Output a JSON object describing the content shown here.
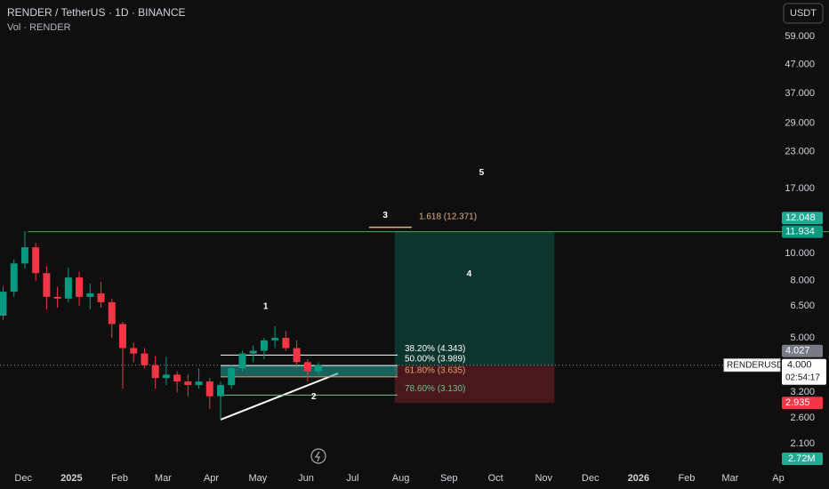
{
  "header": {
    "symbol": "RENDER / TetherUS · 1D · BINANCE",
    "volume": "Vol · RENDER",
    "currency": "USDT"
  },
  "chart_data": {
    "type": "candlestick",
    "x": [
      "2024-11-18",
      "2024-11-25",
      "2024-12-02",
      "2024-12-09",
      "2024-12-16",
      "2024-12-23",
      "2024-12-30",
      "2025-01-06",
      "2025-01-13",
      "2025-01-20",
      "2025-01-27",
      "2025-02-03",
      "2025-02-10",
      "2025-02-17",
      "2025-02-24",
      "2025-03-03",
      "2025-03-10",
      "2025-03-17",
      "2025-03-24",
      "2025-03-31",
      "2025-04-07",
      "2025-04-14",
      "2025-04-21",
      "2025-04-28",
      "2025-05-05",
      "2025-05-12",
      "2025-05-19",
      "2025-05-26",
      "2025-06-02",
      "2025-06-09"
    ],
    "open": [
      6.0,
      7.3,
      9.2,
      10.5,
      8.5,
      7.0,
      6.9,
      8.2,
      7.0,
      7.2,
      6.7,
      5.6,
      4.6,
      4.4,
      4.0,
      3.6,
      3.7,
      3.5,
      3.4,
      3.5,
      3.1,
      3.4,
      3.9,
      4.4,
      4.5,
      4.9,
      5.0,
      4.6,
      4.1,
      3.8
    ],
    "high": [
      7.6,
      9.5,
      12.0,
      10.9,
      9.0,
      7.6,
      8.9,
      8.6,
      7.8,
      7.9,
      6.9,
      5.7,
      4.8,
      4.6,
      4.3,
      4.3,
      3.8,
      3.7,
      3.9,
      3.6,
      3.5,
      4.0,
      4.5,
      4.7,
      5.0,
      5.5,
      5.3,
      4.9,
      4.2,
      4.1
    ],
    "low": [
      5.8,
      7.0,
      8.8,
      8.0,
      6.3,
      6.4,
      6.7,
      6.5,
      6.3,
      6.4,
      5.0,
      3.3,
      4.1,
      3.9,
      3.3,
      3.4,
      3.2,
      3.1,
      3.3,
      2.8,
      2.55,
      3.3,
      3.8,
      4.1,
      4.2,
      4.6,
      4.5,
      3.9,
      3.5,
      3.7
    ],
    "close": [
      7.3,
      9.2,
      10.5,
      8.5,
      7.0,
      6.9,
      8.2,
      7.0,
      7.2,
      6.7,
      5.6,
      4.6,
      4.4,
      4.0,
      3.6,
      3.7,
      3.5,
      3.4,
      3.5,
      3.1,
      3.4,
      3.9,
      4.4,
      4.5,
      4.9,
      5.0,
      4.6,
      4.1,
      3.8,
      4.0
    ],
    "up_color": "#089981",
    "down_color": "#f23645",
    "log_scale": true,
    "ylim": [
      1.74,
      79.6
    ],
    "yticks": [
      {
        "value": 59,
        "label": "59.000"
      },
      {
        "value": 47,
        "label": "47.000"
      },
      {
        "value": 37,
        "label": "37.000"
      },
      {
        "value": 29,
        "label": "29.000"
      },
      {
        "value": 23,
        "label": "23.000"
      },
      {
        "value": 17,
        "label": "17.000"
      },
      {
        "value": 10,
        "label": "10.000"
      },
      {
        "value": 8,
        "label": "8.000"
      },
      {
        "value": 6.5,
        "label": "6.500"
      },
      {
        "value": 5,
        "label": "5.000"
      },
      {
        "value": 3.2,
        "label": "3.200"
      },
      {
        "value": 2.6,
        "label": "2.600"
      },
      {
        "value": 2.1,
        "label": "2.100"
      }
    ],
    "xlim": [
      "2024-11-16",
      "2026-04-01"
    ],
    "xticks": [
      {
        "value": "2024-12-01",
        "label": "Dec"
      },
      {
        "value": "2025-01-01",
        "label": "2025"
      },
      {
        "value": "2025-02-01",
        "label": "Feb"
      },
      {
        "value": "2025-03-01",
        "label": "Mar"
      },
      {
        "value": "2025-04-01",
        "label": "Apr"
      },
      {
        "value": "2025-05-01",
        "label": "May"
      },
      {
        "value": "2025-06-01",
        "label": "Jun"
      },
      {
        "value": "2025-07-01",
        "label": "Jul"
      },
      {
        "value": "2025-08-01",
        "label": "Aug"
      },
      {
        "value": "2025-09-01",
        "label": "Sep"
      },
      {
        "value": "2025-10-01",
        "label": "Oct"
      },
      {
        "value": "2025-11-01",
        "label": "Nov"
      },
      {
        "value": "2025-12-01",
        "label": "Dec"
      },
      {
        "value": "2026-01-01",
        "label": "2026"
      },
      {
        "value": "2026-02-01",
        "label": "Feb"
      },
      {
        "value": "2026-03-01",
        "label": "Mar"
      },
      {
        "value": "2026-04-01",
        "label": "Ap"
      }
    ],
    "resistance": {
      "value": 11.934,
      "from": "2024-12-04",
      "color": "#4caf50"
    },
    "fib_levels": [
      {
        "value": 4.343,
        "label": "38.20% (4.343)",
        "color": "#ffffff"
      },
      {
        "value": 3.989,
        "label": "50.00% (3.989)",
        "color": "#ffffff"
      },
      {
        "value": 3.635,
        "label": "61.80% (3.635)",
        "color": "#e0a070"
      },
      {
        "value": 3.13,
        "label": "78.60% (3.130)",
        "color": "#6fbf8f"
      }
    ],
    "extension": {
      "value": 12.371,
      "label": "1.618 (12.371)",
      "color": "#e0b080"
    },
    "position": {
      "entry": 4.0,
      "target": 11.934,
      "stop": 2.935,
      "from": "2025-07-28",
      "to": "2025-11-08"
    },
    "waves": [
      {
        "label": "1",
        "date": "2025-05-06",
        "price": 6.45
      },
      {
        "label": "2",
        "date": "2025-06-06",
        "price": 3.09
      },
      {
        "label": "3",
        "date": "2025-07-22",
        "price": 13.65
      },
      {
        "label": "4",
        "date": "2025-09-14",
        "price": 8.44
      },
      {
        "label": "5",
        "date": "2025-09-22",
        "price": 19.3
      }
    ],
    "last_price": {
      "value": 4.0,
      "label": "4.000",
      "symbol": "RENDERUSDT",
      "countdown": "02:54:17"
    },
    "price_tags": [
      {
        "value": 11.934,
        "label": "11.934",
        "color": "#089981"
      },
      {
        "value": 12.048,
        "label": "12.048",
        "color": "#22ab94"
      },
      {
        "value": 4.027,
        "label": "4.027",
        "color": "#787b86"
      },
      {
        "value": 2.935,
        "label": "2.935",
        "color": "#f23645"
      }
    ],
    "volume_tag": {
      "label": "2.72M",
      "color": "#22ab94"
    }
  }
}
